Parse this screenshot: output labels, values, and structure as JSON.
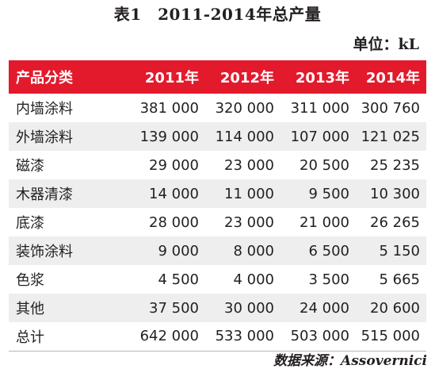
{
  "title": "表1　2011-2014年总产量",
  "unit": "单位：kL",
  "table": {
    "headers": [
      "产品分类",
      "2011年",
      "2012年",
      "2013年",
      "2014年"
    ],
    "rows": [
      [
        "内墙涂料",
        "381 000",
        "320 000",
        "311 000",
        "300 760"
      ],
      [
        "外墙涂料",
        "139 000",
        "114 000",
        "107 000",
        "121 025"
      ],
      [
        "磁漆",
        "29 000",
        "23 000",
        "20 500",
        "25 235"
      ],
      [
        "木器清漆",
        "14 000",
        "11 000",
        "9 500",
        "10 300"
      ],
      [
        "底漆",
        "28 000",
        "23 000",
        "21 000",
        "26 265"
      ],
      [
        "装饰涂料",
        "9 000",
        "8 000",
        "6 500",
        "5 150"
      ],
      [
        "色浆",
        "4 500",
        "4 000",
        "3 500",
        "5 665"
      ],
      [
        "其他",
        "37 500",
        "30 000",
        "24 000",
        "20 600"
      ],
      [
        "总计",
        "642 000",
        "533 000",
        "503 000",
        "515 000"
      ]
    ]
  },
  "source": "数据来源：Assovernici",
  "colors": {
    "header_bg": "#e21a2c",
    "header_text": "#ffffff",
    "stripe": "#eeeeee",
    "text": "#231f20"
  }
}
